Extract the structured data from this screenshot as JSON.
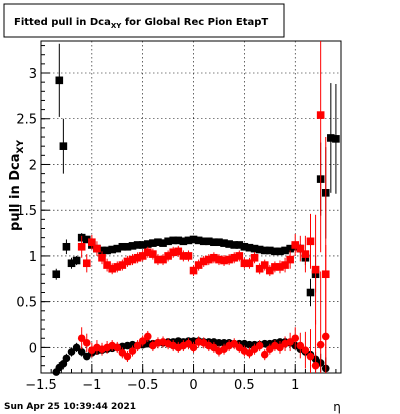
{
  "chart_data": {
    "type": "scatter",
    "title": "Fitted pull in Dca",
    "title_subscript": "XY",
    "title_suffix": " for Global Rec Pion EtapT",
    "xlabel": "η",
    "ylabel": "pull in Dca",
    "ylabel_subscript": "XY",
    "xlim": [
      -1.5,
      1.45
    ],
    "ylim": [
      -0.28,
      3.35
    ],
    "x_ticks": [
      -1.5,
      -1,
      -0.5,
      0,
      0.5,
      1
    ],
    "x_tick_labels": [
      "−1.5",
      "−1",
      "−0.5",
      "0",
      "0.5",
      "1"
    ],
    "y_ticks": [
      0,
      0.5,
      1,
      1.5,
      2,
      2.5,
      3
    ],
    "y_tick_labels": [
      "0",
      "0.5",
      "1",
      "1.5",
      "2",
      "2.5",
      "3"
    ],
    "grid": true,
    "footer": "Sun Apr 25 10:39:44 2021",
    "colors": {
      "black_series": "#000000",
      "red_series": "#ff0000",
      "grid": "#000000"
    },
    "series": [
      {
        "marker": "square",
        "color": "#000000",
        "x": [
          -1.35,
          -1.32,
          -1.28,
          -1.25,
          -1.2,
          -1.15,
          -1.1,
          -1.05,
          -1.0,
          -0.95,
          -0.9,
          -0.85,
          -0.8,
          -0.75,
          -0.7,
          -0.65,
          -0.6,
          -0.55,
          -0.5,
          -0.45,
          -0.4,
          -0.35,
          -0.3,
          -0.25,
          -0.2,
          -0.15,
          -0.1,
          -0.05,
          0.0,
          0.05,
          0.1,
          0.15,
          0.2,
          0.25,
          0.3,
          0.35,
          0.4,
          0.45,
          0.5,
          0.55,
          0.6,
          0.65,
          0.7,
          0.75,
          0.8,
          0.85,
          0.9,
          0.95,
          1.0,
          1.05,
          1.1,
          1.15,
          1.2,
          1.25,
          1.3,
          1.35,
          1.4
        ],
        "y": [
          0.8,
          2.92,
          2.2,
          1.1,
          0.92,
          0.95,
          1.2,
          1.18,
          1.12,
          1.08,
          1.06,
          1.06,
          1.07,
          1.08,
          1.1,
          1.1,
          1.11,
          1.12,
          1.12,
          1.13,
          1.14,
          1.15,
          1.14,
          1.16,
          1.17,
          1.17,
          1.16,
          1.17,
          1.18,
          1.17,
          1.16,
          1.16,
          1.15,
          1.15,
          1.14,
          1.13,
          1.12,
          1.12,
          1.1,
          1.09,
          1.08,
          1.07,
          1.06,
          1.06,
          1.05,
          1.05,
          1.06,
          1.08,
          1.1,
          1.08,
          0.98,
          0.6,
          0.8,
          1.84,
          1.69,
          2.29,
          2.28
        ],
        "err": [
          0.06,
          0.4,
          0.3,
          0.08,
          0.06,
          0.05,
          0.05,
          0.03,
          0.02,
          0.02,
          0.02,
          0.02,
          0.02,
          0.02,
          0.02,
          0.02,
          0.02,
          0.02,
          0.02,
          0.02,
          0.02,
          0.02,
          0.02,
          0.02,
          0.02,
          0.02,
          0.02,
          0.02,
          0.02,
          0.02,
          0.02,
          0.02,
          0.02,
          0.02,
          0.02,
          0.02,
          0.02,
          0.02,
          0.02,
          0.02,
          0.02,
          0.02,
          0.02,
          0.02,
          0.02,
          0.02,
          0.02,
          0.03,
          0.04,
          0.05,
          0.08,
          0.15,
          0.2,
          0.4,
          0.5,
          0.6,
          0.6
        ]
      },
      {
        "marker": "square",
        "color": "#ff0000",
        "x": [
          -1.1,
          -1.05,
          -1.0,
          -0.95,
          -0.9,
          -0.85,
          -0.8,
          -0.75,
          -0.7,
          -0.65,
          -0.6,
          -0.55,
          -0.5,
          -0.45,
          -0.4,
          -0.35,
          -0.3,
          -0.25,
          -0.2,
          -0.15,
          -0.1,
          -0.05,
          0.0,
          0.05,
          0.1,
          0.15,
          0.2,
          0.25,
          0.3,
          0.35,
          0.4,
          0.45,
          0.5,
          0.55,
          0.6,
          0.65,
          0.7,
          0.75,
          0.8,
          0.85,
          0.9,
          0.95,
          1.0,
          1.05,
          1.1,
          1.15,
          1.2,
          1.25,
          1.3
        ],
        "y": [
          1.1,
          0.92,
          1.15,
          1.08,
          0.98,
          0.9,
          0.86,
          0.88,
          0.9,
          0.94,
          0.96,
          0.98,
          1.0,
          1.04,
          1.02,
          0.96,
          0.96,
          1.0,
          1.04,
          1.05,
          1.0,
          1.0,
          0.84,
          0.9,
          0.94,
          0.96,
          0.98,
          0.96,
          0.95,
          0.96,
          0.98,
          1.0,
          0.92,
          0.92,
          0.98,
          0.86,
          0.9,
          0.84,
          0.88,
          0.88,
          0.9,
          0.96,
          1.12,
          1.08,
          1.02,
          1.16,
          0.85,
          2.54,
          0.8
        ],
        "err": [
          0.12,
          0.1,
          0.08,
          0.08,
          0.07,
          0.07,
          0.06,
          0.06,
          0.06,
          0.06,
          0.06,
          0.06,
          0.06,
          0.06,
          0.06,
          0.06,
          0.06,
          0.06,
          0.06,
          0.06,
          0.06,
          0.06,
          0.06,
          0.06,
          0.06,
          0.06,
          0.06,
          0.06,
          0.06,
          0.06,
          0.06,
          0.06,
          0.06,
          0.06,
          0.06,
          0.06,
          0.06,
          0.06,
          0.06,
          0.07,
          0.08,
          0.1,
          0.12,
          0.14,
          0.2,
          0.3,
          0.6,
          1.5,
          1.5
        ]
      },
      {
        "marker": "circle",
        "color": "#000000",
        "x": [
          -1.35,
          -1.32,
          -1.28,
          -1.25,
          -1.2,
          -1.15,
          -1.1,
          -1.05,
          -1.0,
          -0.95,
          -0.9,
          -0.85,
          -0.8,
          -0.75,
          -0.7,
          -0.65,
          -0.6,
          -0.55,
          -0.5,
          -0.45,
          -0.4,
          -0.35,
          -0.3,
          -0.25,
          -0.2,
          -0.15,
          -0.1,
          -0.05,
          0.0,
          0.05,
          0.1,
          0.15,
          0.2,
          0.25,
          0.3,
          0.35,
          0.4,
          0.45,
          0.5,
          0.55,
          0.6,
          0.65,
          0.7,
          0.75,
          0.8,
          0.85,
          0.9,
          0.95,
          1.0,
          1.05,
          1.1,
          1.15,
          1.2,
          1.25,
          1.3
        ],
        "y": [
          -0.27,
          -0.22,
          -0.18,
          -0.12,
          -0.05,
          0.0,
          -0.05,
          -0.1,
          -0.06,
          -0.04,
          -0.03,
          -0.02,
          -0.01,
          0.0,
          0.01,
          0.02,
          0.03,
          0.02,
          0.03,
          0.04,
          0.04,
          0.05,
          0.05,
          0.06,
          0.06,
          0.07,
          0.06,
          0.07,
          0.07,
          0.07,
          0.06,
          0.06,
          0.06,
          0.05,
          0.05,
          0.05,
          0.04,
          0.04,
          0.04,
          0.03,
          0.03,
          0.03,
          0.04,
          0.04,
          0.05,
          0.06,
          0.06,
          0.05,
          0.02,
          -0.02,
          -0.05,
          -0.08,
          -0.13,
          -0.17,
          -0.23
        ],
        "err": [
          0.06,
          0.06,
          0.06,
          0.05,
          0.05,
          0.05,
          0.05,
          0.04,
          0.03,
          0.03,
          0.02,
          0.02,
          0.02,
          0.02,
          0.02,
          0.02,
          0.02,
          0.02,
          0.02,
          0.02,
          0.02,
          0.02,
          0.02,
          0.02,
          0.02,
          0.02,
          0.02,
          0.02,
          0.02,
          0.02,
          0.02,
          0.02,
          0.02,
          0.02,
          0.02,
          0.02,
          0.02,
          0.02,
          0.02,
          0.02,
          0.02,
          0.02,
          0.02,
          0.02,
          0.02,
          0.02,
          0.02,
          0.03,
          0.03,
          0.04,
          0.05,
          0.06,
          0.08,
          0.1,
          0.12
        ]
      },
      {
        "marker": "circle",
        "color": "#ff0000",
        "x": [
          -1.1,
          -1.05,
          -1.0,
          -0.95,
          -0.9,
          -0.85,
          -0.8,
          -0.75,
          -0.7,
          -0.65,
          -0.6,
          -0.55,
          -0.5,
          -0.45,
          -0.4,
          -0.35,
          -0.3,
          -0.25,
          -0.2,
          -0.15,
          -0.1,
          -0.05,
          0.0,
          0.05,
          0.1,
          0.15,
          0.2,
          0.25,
          0.3,
          0.35,
          0.4,
          0.45,
          0.5,
          0.55,
          0.6,
          0.65,
          0.7,
          0.75,
          0.8,
          0.85,
          0.9,
          0.95,
          1.0,
          1.05,
          1.1,
          1.15,
          1.2,
          1.25,
          1.3
        ],
        "y": [
          0.1,
          0.05,
          -0.03,
          0.0,
          -0.02,
          0.0,
          0.02,
          0.0,
          -0.06,
          -0.1,
          -0.04,
          0.02,
          0.07,
          0.12,
          0.02,
          0.05,
          0.06,
          0.04,
          0.02,
          0.0,
          0.02,
          0.04,
          0.0,
          0.06,
          0.05,
          0.02,
          0.0,
          -0.04,
          -0.02,
          0.02,
          0.04,
          0.0,
          -0.04,
          -0.06,
          -0.02,
          0.02,
          -0.08,
          -0.02,
          0.02,
          0.0,
          0.04,
          0.06,
          0.1,
          0.02,
          -0.03,
          -0.1,
          -0.2,
          0.03,
          0.12
        ],
        "err": [
          0.12,
          0.1,
          0.08,
          0.08,
          0.07,
          0.07,
          0.06,
          0.06,
          0.06,
          0.06,
          0.06,
          0.06,
          0.06,
          0.06,
          0.06,
          0.06,
          0.06,
          0.06,
          0.06,
          0.06,
          0.06,
          0.06,
          0.06,
          0.06,
          0.06,
          0.06,
          0.06,
          0.06,
          0.06,
          0.06,
          0.06,
          0.06,
          0.06,
          0.06,
          0.06,
          0.06,
          0.06,
          0.06,
          0.06,
          0.07,
          0.08,
          0.1,
          0.12,
          0.14,
          0.2,
          0.3,
          0.5,
          0.8,
          1.0
        ]
      }
    ]
  }
}
